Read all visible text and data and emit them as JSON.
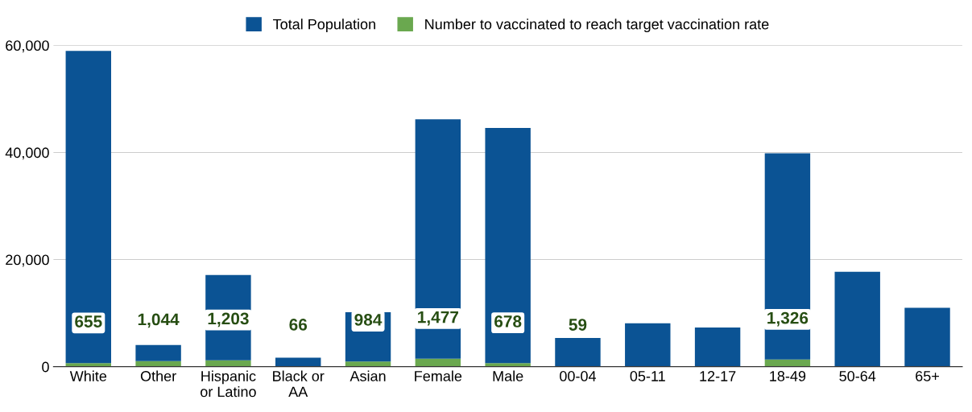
{
  "chart_data": {
    "type": "bar",
    "stacked": true,
    "categories": [
      "White",
      "Other",
      "Hispanic\nor Latino",
      "Black or\nAA",
      "Asian",
      "Female",
      "Male",
      "00-04",
      "05-11",
      "12-17",
      "18-49",
      "50-64",
      "65+"
    ],
    "series": [
      {
        "name": "Number to vaccinated to reach target vaccination rate",
        "color": "#6aa84f",
        "values": [
          655,
          1044,
          1203,
          66,
          984,
          1477,
          678,
          59,
          null,
          null,
          1326,
          null,
          null
        ],
        "value_labels": [
          "655",
          "1,044",
          "1,203",
          "66",
          "984",
          "1,477",
          "678",
          "59",
          null,
          null,
          "1,326",
          null,
          null
        ]
      },
      {
        "name": "Total Population",
        "color": "#0b5394",
        "values": [
          58300,
          3000,
          15900,
          1600,
          9200,
          44700,
          43900,
          5300,
          8100,
          7300,
          38500,
          17700,
          11000
        ]
      }
    ],
    "ylim": [
      0,
      60000
    ],
    "yticks": [
      0,
      {
        "value": 20000,
        "label": "20,000"
      },
      {
        "value": 40000,
        "label": "40,000"
      },
      {
        "value": 60000,
        "label": "60,000"
      }
    ],
    "grid": "y",
    "legend": "top"
  }
}
